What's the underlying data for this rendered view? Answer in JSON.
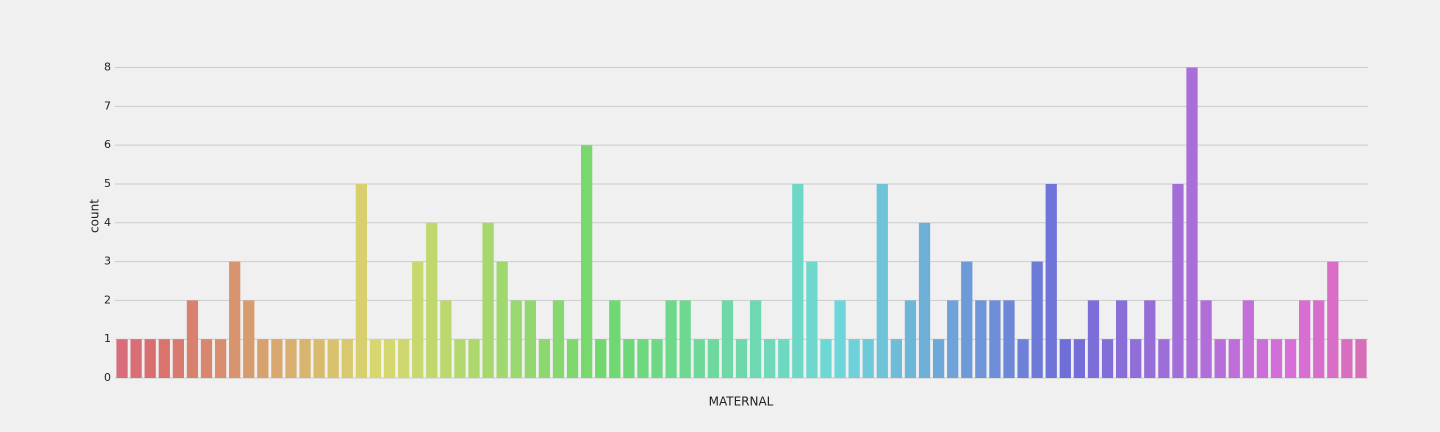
{
  "chart_data": {
    "type": "bar",
    "x_label": "MATERNAL",
    "y_label": "count",
    "categories": [
      null,
      null,
      null,
      null,
      null,
      null,
      null,
      null,
      null,
      null,
      null,
      null,
      null,
      null,
      null,
      null,
      null,
      null,
      null,
      null,
      null,
      null,
      null,
      null,
      null,
      null,
      null,
      null,
      null,
      null,
      null,
      null,
      null,
      null,
      null,
      null,
      null,
      null,
      null,
      null,
      null,
      null,
      null,
      null,
      null,
      null,
      null,
      null,
      null,
      null,
      null,
      null,
      null,
      null,
      null,
      null,
      null,
      null,
      null,
      null,
      null,
      null,
      null,
      null,
      null,
      null,
      null,
      null,
      null,
      null,
      null,
      null,
      null,
      null,
      null,
      null,
      null,
      null,
      null,
      null,
      null,
      null,
      null,
      null,
      null,
      null,
      null,
      null,
      null
    ],
    "values": [
      1,
      1,
      1,
      1,
      1,
      2,
      1,
      1,
      3,
      2,
      1,
      1,
      1,
      1,
      1,
      1,
      1,
      5,
      1,
      1,
      1,
      3,
      4,
      2,
      1,
      1,
      4,
      3,
      2,
      2,
      1,
      2,
      1,
      6,
      1,
      2,
      1,
      1,
      1,
      2,
      2,
      1,
      1,
      2,
      1,
      2,
      1,
      1,
      5,
      3,
      1,
      2,
      1,
      1,
      5,
      1,
      2,
      4,
      1,
      2,
      3,
      2,
      2,
      2,
      1,
      3,
      5,
      1,
      1,
      2,
      1,
      2,
      1,
      2,
      1,
      5,
      8,
      2,
      1,
      1,
      2,
      1,
      1,
      1,
      2,
      2,
      3,
      1,
      1
    ],
    "palette": "husl",
    "ylim": [
      0,
      8.4
    ],
    "yticks": [
      0,
      1,
      2,
      3,
      4,
      5,
      6,
      7,
      8
    ],
    "grid": true
  }
}
